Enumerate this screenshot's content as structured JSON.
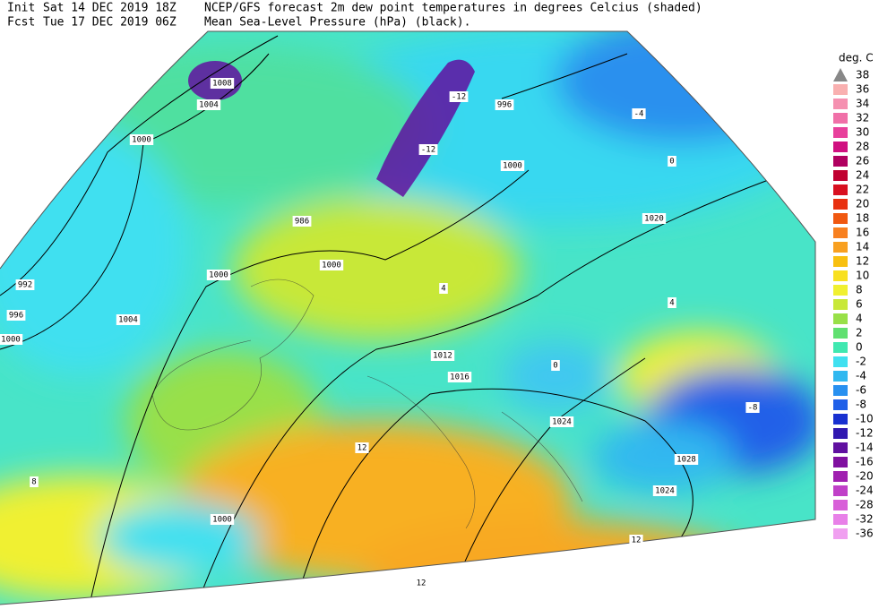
{
  "header": {
    "init_label": "Init",
    "init_time": "Sat 14 DEC 2019 18Z",
    "line1": "NCEP/GFS forecast 2m dew point temperatures in degrees Celcius (shaded)",
    "fcst_label": "Fcst",
    "fcst_time": "Tue 17 DEC 2019 06Z",
    "line2": "Mean Sea-Level Pressure (hPa) (black)."
  },
  "legend": {
    "title": "deg. C",
    "top_label": "38",
    "labels": [
      "36",
      "34",
      "32",
      "30",
      "28",
      "26",
      "24",
      "22",
      "20",
      "18",
      "16",
      "14",
      "12",
      "10",
      "8",
      "6",
      "4",
      "2",
      "0",
      "-2",
      "-4",
      "-6",
      "-8",
      "-10",
      "-12",
      "-14",
      "-16",
      "-20",
      "-24",
      "-28",
      "-32",
      "-36"
    ],
    "colors": [
      "#f9b0b0",
      "#f590b0",
      "#f070a8",
      "#e8409c",
      "#d01080",
      "#b00060",
      "#c00030",
      "#d81020",
      "#e83010",
      "#f05810",
      "#f88020",
      "#f8a020",
      "#f8c010",
      "#f8e020",
      "#f0f030",
      "#c8e838",
      "#98e048",
      "#60e070",
      "#40e8b0",
      "#40e0f0",
      "#30b8f0",
      "#2890f0",
      "#2060e8",
      "#1830d0",
      "#3018b0",
      "#6010a0",
      "#8010a0",
      "#a020b0",
      "#c040c8",
      "#d860d8",
      "#e880e8",
      "#f0a0f0"
    ]
  },
  "map": {
    "isobar_labels": [
      "1008",
      "1004",
      "1000",
      "996",
      "1000",
      "986",
      "1000",
      "1000",
      "992",
      "996",
      "1004",
      "1000",
      "1012",
      "1016",
      "1020",
      "1024",
      "1028",
      "1024",
      "1000"
    ],
    "dew_labels": [
      "-12",
      "-12",
      "-4",
      "0",
      "12",
      "12",
      "12",
      "-8",
      "4",
      "8",
      "0",
      "4"
    ]
  }
}
